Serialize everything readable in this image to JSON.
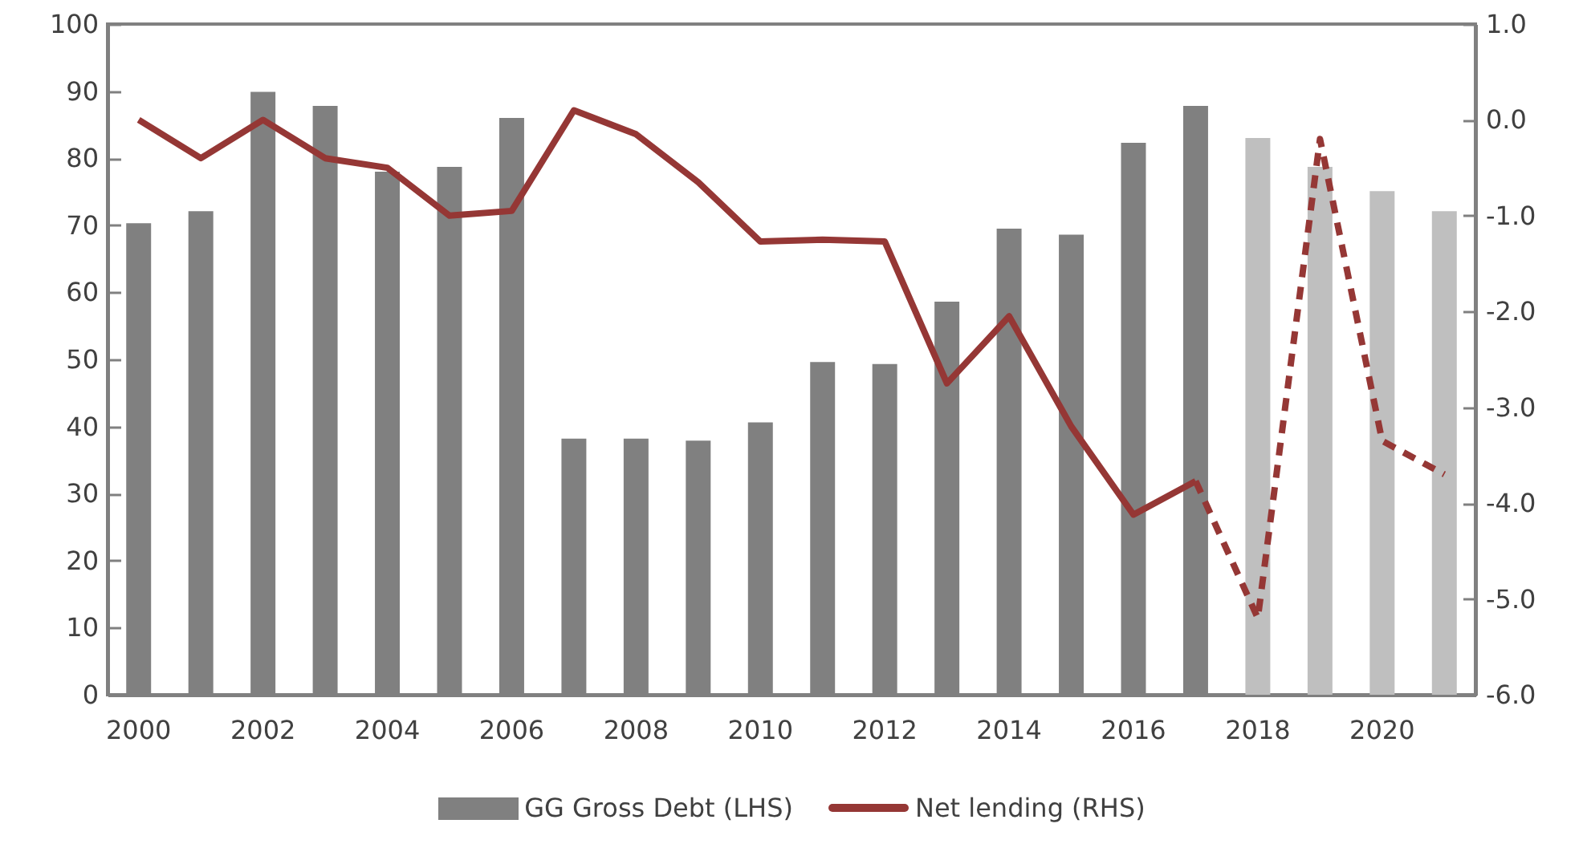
{
  "chart_data": {
    "type": "bar",
    "categories": [
      "2000",
      null,
      "2002",
      null,
      "2004",
      null,
      "2006",
      null,
      "2008",
      null,
      "2010",
      null,
      "2012",
      null,
      "2014",
      null,
      "2016",
      null,
      "2018",
      null,
      "2020",
      null
    ],
    "series": [
      {
        "name": "GG Gross Debt (LHS)",
        "color": "#808080",
        "colors": [
          "#808080",
          "#808080",
          "#808080",
          "#808080",
          "#808080",
          "#808080",
          "#808080",
          "#808080",
          "#808080",
          "#808080",
          "#808080",
          "#808080",
          "#808080",
          "#808080",
          "#808080",
          "#808080",
          "#808080",
          "#808080",
          "#bfbfbf",
          "#bfbfbf",
          "#bfbfbf",
          "#bfbfbf"
        ],
        "values": [
          70.3,
          72.1,
          89.9,
          87.8,
          78,
          78.7,
          86,
          38.2,
          38.2,
          37.9,
          40.6,
          49.6,
          49.3,
          58.6,
          69.5,
          68.6,
          82.3,
          87.8,
          83,
          78.7,
          75.1,
          72.1
        ]
      },
      {
        "name": "Net lending (RHS)",
        "type": "line",
        "axis": "y2",
        "color": "#953735",
        "line_style": "solid",
        "values": [
          0,
          -0.4,
          0,
          -0.4,
          -0.5,
          -1,
          -0.95,
          0.1,
          -0.15,
          -0.65,
          -1.27,
          -1.25,
          -1.27,
          -2.75,
          -2.05,
          -3.2,
          -4.12,
          -3.77,
          null,
          null,
          null,
          null
        ]
      },
      {
        "type": "line",
        "axis": "y2",
        "color": "#953735",
        "line_style": "dashed",
        "values": [
          null,
          null,
          null,
          null,
          null,
          null,
          null,
          null,
          null,
          null,
          null,
          null,
          null,
          null,
          null,
          null,
          null,
          -3.77,
          -5.2,
          -0.2,
          -3.35,
          -3.7
        ]
      }
    ],
    "ylim": [
      0,
      100
    ],
    "yticks": [
      0,
      10,
      20,
      30,
      40,
      50,
      60,
      70,
      80,
      90,
      100
    ],
    "y2lim": [
      -6,
      1
    ],
    "y2ticks": [
      {
        "value": -6,
        "label": "-6.0"
      },
      {
        "value": -5,
        "label": "-5.0"
      },
      {
        "value": -4,
        "label": "-4.0"
      },
      {
        "value": -3,
        "label": "-3.0"
      },
      {
        "value": -2,
        "label": "-2.0"
      },
      {
        "value": -1,
        "label": "-1.0"
      },
      {
        "value": 0,
        "label": "0.0"
      },
      {
        "value": 1,
        "label": "1.0"
      }
    ],
    "grid": false,
    "legend": "bottom"
  }
}
